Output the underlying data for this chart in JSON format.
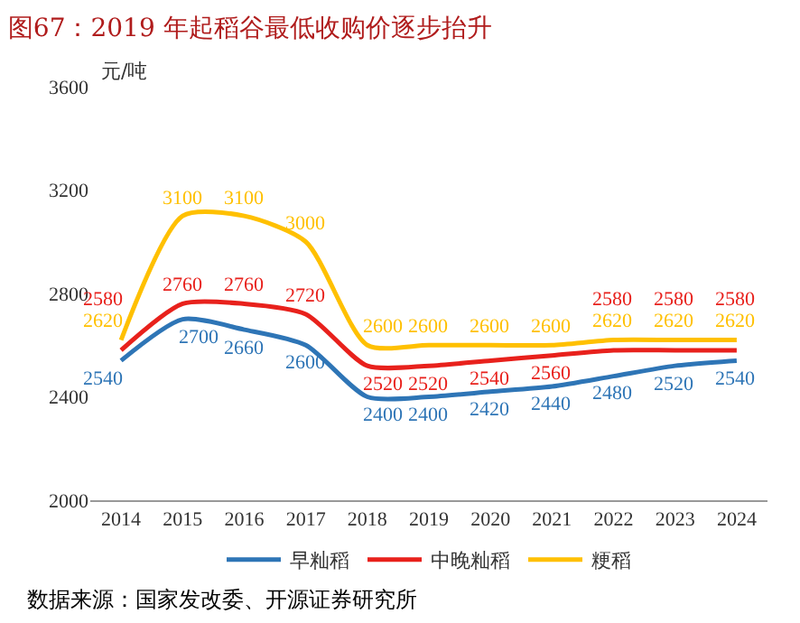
{
  "chart_data": {
    "type": "line",
    "title": "图67：2019 年起稻谷最低收购价逐步抬升",
    "ylabel": "元/吨",
    "categories": [
      "2014",
      "2015",
      "2016",
      "2017",
      "2018",
      "2019",
      "2020",
      "2021",
      "2022",
      "2023",
      "2024"
    ],
    "series": [
      {
        "name": "早籼稻",
        "color": "#2e75b6",
        "values": [
          2540,
          2700,
          2660,
          2600,
          2400,
          2400,
          2420,
          2440,
          2480,
          2520,
          2540
        ]
      },
      {
        "name": "中晚籼稻",
        "color": "#e8211c",
        "values": [
          2580,
          2760,
          2760,
          2720,
          2520,
          2520,
          2540,
          2560,
          2580,
          2580,
          2580
        ]
      },
      {
        "name": "粳稻",
        "color": "#ffc000",
        "values": [
          2620,
          3100,
          3100,
          3000,
          2600,
          2600,
          2600,
          2600,
          2620,
          2620,
          2620
        ]
      }
    ],
    "ylim": [
      2000,
      3600
    ],
    "yticks": [
      2000,
      2400,
      2800,
      3200,
      3600
    ],
    "grid": false,
    "legend": "bottom",
    "data_labels": true,
    "marker": "none",
    "line_style": "solid",
    "annotations": [
      "数据来源：国家发改委、开源证券研究所"
    ]
  }
}
